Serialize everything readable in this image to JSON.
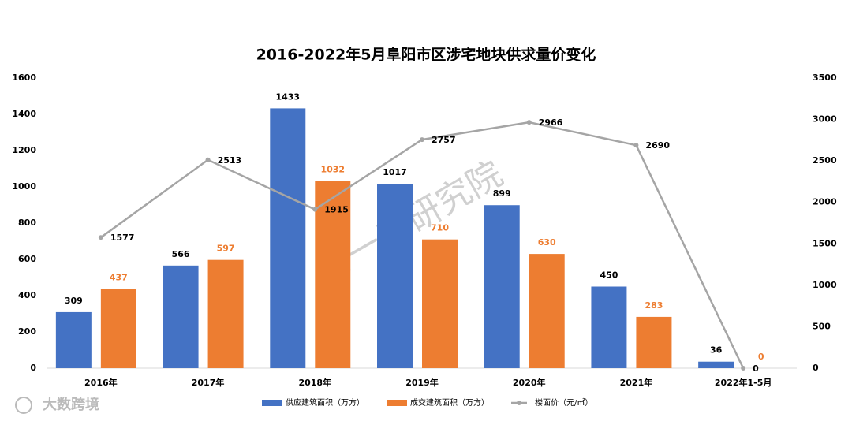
{
  "chart_data": {
    "type": "bar",
    "title": "2016-2022年5月阜阳市区涉宅地块供求量价变化",
    "watermark": "第一房研究院",
    "logo_text": "大数跨境",
    "categories": [
      "2016年",
      "2017年",
      "2018年",
      "2019年",
      "2020年",
      "2021年",
      "2022年1-5月"
    ],
    "series": [
      {
        "name": "供应建筑面积（万方）",
        "color": "#4472c4",
        "type": "bar",
        "values": [
          309,
          566,
          1433,
          1017,
          899,
          450,
          36
        ]
      },
      {
        "name": "成交建筑面积（万方）",
        "color": "#ed7d31",
        "type": "bar",
        "values": [
          437,
          597,
          1032,
          710,
          630,
          283,
          0
        ]
      },
      {
        "name": "楼面价（元/㎡）",
        "color": "#a5a5a5",
        "type": "line",
        "axis": "y2",
        "values": [
          1577,
          2513,
          1915,
          2757,
          2966,
          2690,
          0
        ]
      }
    ],
    "ylim": [
      0,
      1600
    ],
    "yticks": [
      0,
      200,
      400,
      600,
      800,
      1000,
      1200,
      1400,
      1600
    ],
    "y2lim": [
      0,
      3500
    ],
    "y2ticks": [
      0,
      500,
      1000,
      1500,
      2000,
      2500,
      3000,
      3500
    ],
    "grid": false,
    "legend": "bottom"
  }
}
